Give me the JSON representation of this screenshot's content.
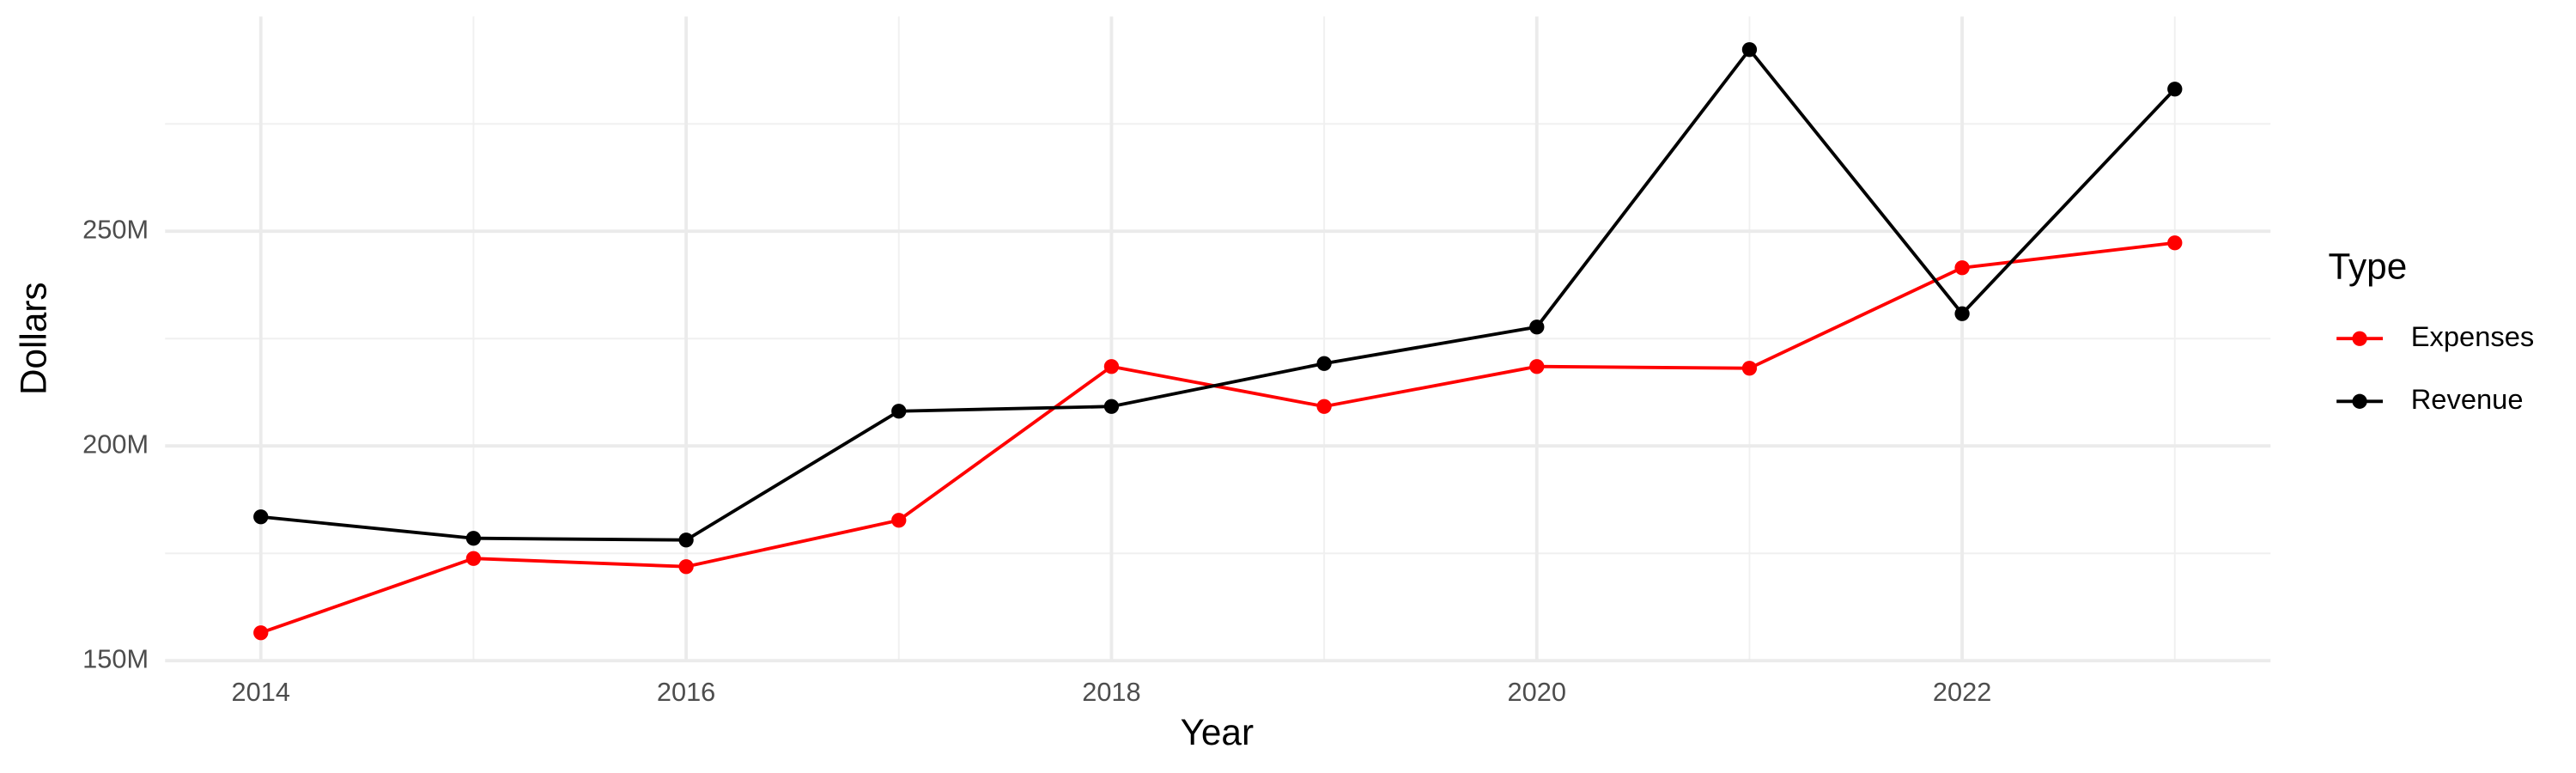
{
  "chart_data": {
    "type": "line",
    "x_label": "Year",
    "y_label": "Dollars",
    "legend_title": "Type",
    "x": [
      2014,
      2015,
      2016,
      2017,
      2018,
      2019,
      2020,
      2021,
      2022,
      2023
    ],
    "series": [
      {
        "name": "Expenses",
        "color": "#ff0000",
        "values": [
          156500000,
          173800000,
          171900000,
          182700000,
          218500000,
          209200000,
          218500000,
          218100000,
          241500000,
          247300000
        ]
      },
      {
        "name": "Revenue",
        "color": "#000000",
        "values": [
          183500000,
          178500000,
          178100000,
          208100000,
          209200000,
          219200000,
          227700000,
          292300000,
          230800000,
          283100000
        ]
      }
    ],
    "xlim": [
      2013.55,
      2023.45
    ],
    "xticks": [
      2014,
      2016,
      2018,
      2020,
      2022
    ],
    "ylim": [
      150000000,
      300000000
    ],
    "yticks": [
      {
        "value": 150000000,
        "label": "150M"
      },
      {
        "value": 200000000,
        "label": "200M"
      },
      {
        "value": 250000000,
        "label": "250M"
      }
    ],
    "grid": true,
    "legend": "right"
  }
}
